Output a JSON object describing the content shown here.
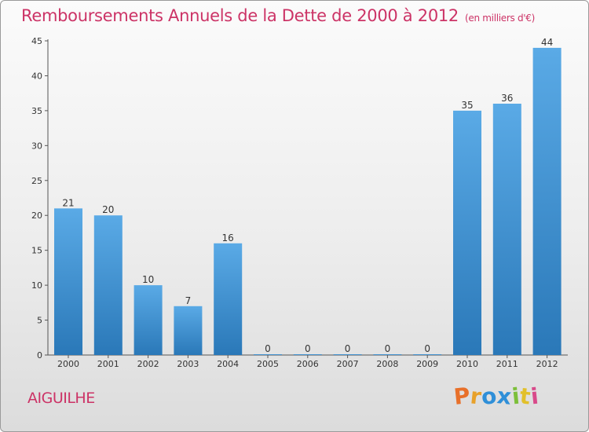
{
  "chart_data": {
    "type": "bar",
    "title": "Remboursements Annuels de la Dette de 2000 à 2012",
    "unit_note": "(en milliers d'€)",
    "categories": [
      "2000",
      "2001",
      "2002",
      "2003",
      "2004",
      "2005",
      "2006",
      "2007",
      "2008",
      "2009",
      "2010",
      "2011",
      "2012"
    ],
    "values": [
      21,
      20,
      10,
      7,
      16,
      0,
      0,
      0,
      0,
      0,
      35,
      36,
      44
    ],
    "ylim": [
      0,
      45
    ],
    "yticks": [
      0,
      5,
      10,
      15,
      20,
      25,
      30,
      35,
      40,
      45
    ],
    "grid": false,
    "bar_color_top": "#5aaae6",
    "bar_color_bottom": "#2a78b8"
  },
  "location": "AIGUILHE",
  "brand": {
    "letters": [
      "P",
      "r",
      "o",
      "x",
      "i",
      "t",
      "i"
    ],
    "colors": [
      "#e8702a",
      "#e8a12a",
      "#2f8fd8",
      "#2f8fd8",
      "#7cbf3a",
      "#e2c02a",
      "#d84a8a"
    ]
  }
}
